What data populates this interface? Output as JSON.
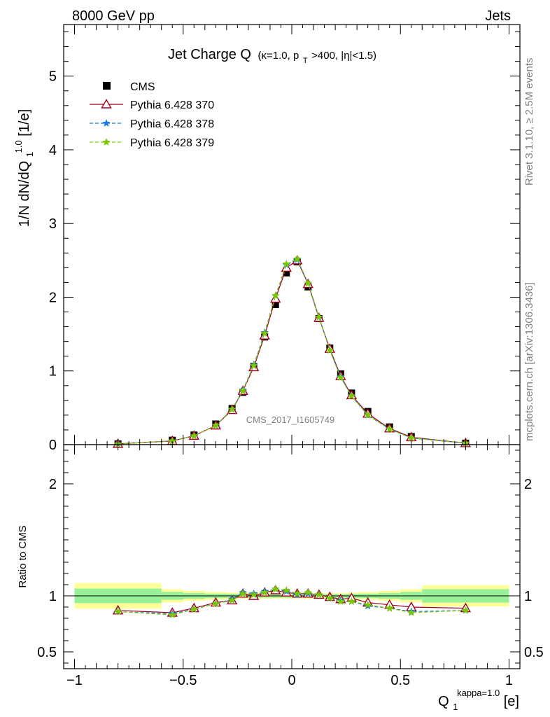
{
  "header": {
    "left": "8000 GeV pp",
    "right": "Jets"
  },
  "side_labels": {
    "rivet": "Rivet 3.1.10, ≥ 2.5M events",
    "mcplots": "mcplots.cern.ch [arXiv:1306.3436]"
  },
  "watermark": "CMS_2017_I1605749",
  "chart_data": [
    {
      "type": "scatter",
      "panel": "main",
      "title": {
        "main": "Jet Charge Q",
        "sub": "(κ=1.0, p",
        "sub_t": "T",
        "sub_rest": ">400, |η|<1.5)"
      },
      "ylabel": {
        "base": "1/N dN/dQ",
        "sub": "1",
        "sup": "1.0",
        "unit": " [1/e]"
      },
      "xlim": [
        -1.05,
        1.05
      ],
      "ylim": [
        0,
        5.7
      ],
      "yticks": [
        0,
        1,
        2,
        3,
        4,
        5
      ],
      "ytick_labels": [
        "0",
        "1",
        "2",
        "3",
        "4",
        "5"
      ],
      "legend_position": "top-left",
      "x": [
        -0.8,
        -0.55,
        -0.45,
        -0.35,
        -0.275,
        -0.225,
        -0.175,
        -0.125,
        -0.075,
        -0.025,
        0.025,
        0.075,
        0.125,
        0.175,
        0.225,
        0.275,
        0.35,
        0.45,
        0.55,
        0.8
      ],
      "series": [
        {
          "name": "CMS",
          "color": "#000000",
          "marker": "square",
          "values": [
            0.01,
            0.06,
            0.13,
            0.28,
            0.49,
            0.71,
            1.06,
            1.46,
            1.9,
            2.33,
            2.48,
            2.14,
            1.71,
            1.31,
            0.96,
            0.7,
            0.45,
            0.24,
            0.11,
            0.02
          ]
        },
        {
          "name": "Pythia 6.428 370",
          "color": "#a0001e",
          "marker": "triangle",
          "dash": "",
          "values": [
            0.01,
            0.05,
            0.12,
            0.26,
            0.47,
            0.73,
            1.05,
            1.48,
            1.98,
            2.4,
            2.5,
            2.18,
            1.72,
            1.3,
            0.93,
            0.67,
            0.42,
            0.22,
            0.1,
            0.02
          ]
        },
        {
          "name": "Pythia 6.428 378",
          "color": "#1e78dc",
          "marker": "star",
          "dash": "5,3",
          "values": [
            0.01,
            0.05,
            0.12,
            0.26,
            0.48,
            0.74,
            1.08,
            1.52,
            2.02,
            2.44,
            2.51,
            2.19,
            1.73,
            1.28,
            0.92,
            0.66,
            0.4,
            0.21,
            0.09,
            0.02
          ]
        },
        {
          "name": "Pythia 6.428 379",
          "color": "#78c800",
          "marker": "star",
          "dash": "5,3",
          "values": [
            0.01,
            0.05,
            0.12,
            0.26,
            0.48,
            0.73,
            1.07,
            1.51,
            2.02,
            2.45,
            2.52,
            2.19,
            1.73,
            1.28,
            0.91,
            0.66,
            0.4,
            0.21,
            0.09,
            0.02
          ]
        }
      ]
    },
    {
      "type": "line",
      "panel": "ratio",
      "ylabel": "Ratio to CMS",
      "xlabel": {
        "base": "Q",
        "sub": "1",
        "sup": "kappa=1.0",
        "unit": " [e]"
      },
      "xlim": [
        -1.05,
        1.05
      ],
      "xticks": [
        -1,
        -0.5,
        0,
        0.5,
        1
      ],
      "xtick_labels": [
        "−1",
        "−0.5",
        "0",
        "0.5",
        "1"
      ],
      "ylim": [
        0.35,
        2.35
      ],
      "yticks": [
        0.5,
        1,
        2
      ],
      "ytick_labels": [
        "0.5",
        "1",
        "2"
      ],
      "reference": 1,
      "bands": {
        "inner_color": "#98f098",
        "outer_color": "#ffff99",
        "bins": [
          {
            "lo": -1.0,
            "hi": -0.6,
            "inner": 0.065,
            "outer": 0.115
          },
          {
            "lo": -0.6,
            "hi": -0.5,
            "inner": 0.035,
            "outer": 0.06
          },
          {
            "lo": -0.5,
            "hi": -0.4,
            "inner": 0.025,
            "outer": 0.045
          },
          {
            "lo": -0.4,
            "hi": -0.3,
            "inner": 0.02,
            "outer": 0.035
          },
          {
            "lo": -0.3,
            "hi": -0.25,
            "inner": 0.018,
            "outer": 0.03
          },
          {
            "lo": -0.25,
            "hi": 0.25,
            "inner": 0.015,
            "outer": 0.025
          },
          {
            "lo": 0.25,
            "hi": 0.3,
            "inner": 0.018,
            "outer": 0.03
          },
          {
            "lo": 0.3,
            "hi": 0.4,
            "inner": 0.02,
            "outer": 0.035
          },
          {
            "lo": 0.4,
            "hi": 0.5,
            "inner": 0.025,
            "outer": 0.045
          },
          {
            "lo": 0.5,
            "hi": 0.6,
            "inner": 0.035,
            "outer": 0.06
          },
          {
            "lo": 0.6,
            "hi": 1.0,
            "inner": 0.06,
            "outer": 0.095
          }
        ]
      },
      "x": [
        -0.8,
        -0.55,
        -0.45,
        -0.35,
        -0.275,
        -0.225,
        -0.175,
        -0.125,
        -0.075,
        -0.025,
        0.025,
        0.075,
        0.125,
        0.175,
        0.225,
        0.275,
        0.35,
        0.45,
        0.55,
        0.8
      ],
      "series": [
        {
          "name": "Pythia 6.428 370",
          "color": "#a0001e",
          "marker": "triangle",
          "dash": "",
          "values": [
            0.87,
            0.85,
            0.89,
            0.94,
            0.96,
            1.02,
            1.0,
            1.03,
            1.05,
            1.03,
            1.02,
            1.02,
            1.01,
            0.99,
            0.97,
            0.98,
            0.94,
            0.92,
            0.9,
            0.89
          ]
        },
        {
          "name": "Pythia 6.428 378",
          "color": "#1e78dc",
          "marker": "star",
          "dash": "5,3",
          "values": [
            0.86,
            0.84,
            0.88,
            0.93,
            0.97,
            1.03,
            1.02,
            1.04,
            1.06,
            1.04,
            1.01,
            1.02,
            1.01,
            0.98,
            0.96,
            0.95,
            0.91,
            0.89,
            0.86,
            0.87
          ]
        },
        {
          "name": "Pythia 6.428 379",
          "color": "#78c800",
          "marker": "star",
          "dash": "5,3",
          "values": [
            0.86,
            0.83,
            0.88,
            0.93,
            0.96,
            1.02,
            1.01,
            1.03,
            1.06,
            1.05,
            1.02,
            1.03,
            1.01,
            0.98,
            0.95,
            0.95,
            0.92,
            0.89,
            0.85,
            0.87
          ]
        }
      ]
    }
  ]
}
